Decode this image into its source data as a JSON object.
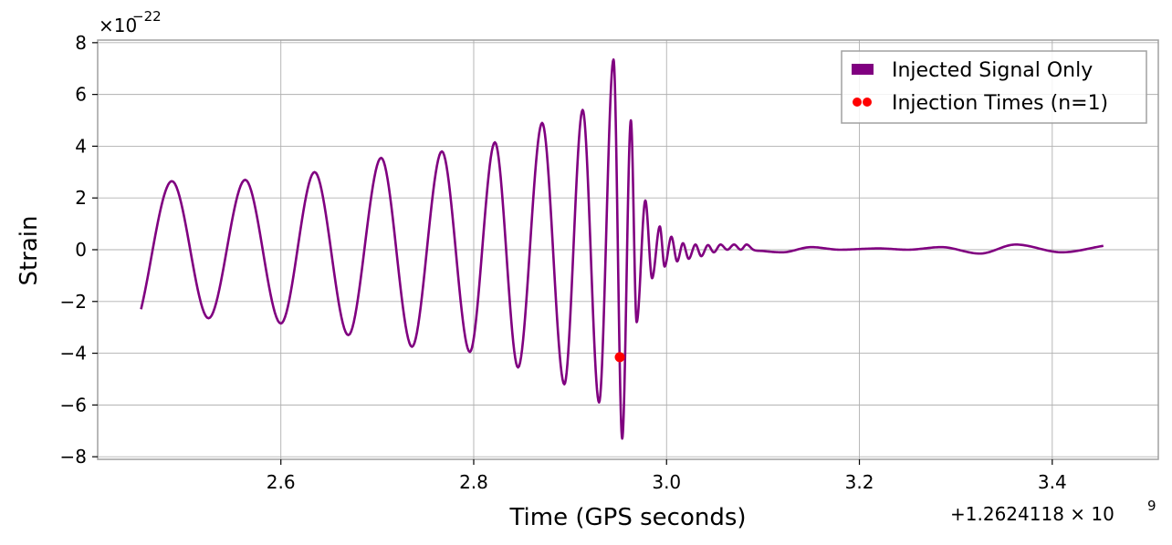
{
  "chart_data": {
    "type": "line",
    "xlabel": "Time (GPS seconds)",
    "ylabel": "Strain",
    "x_offset_text": "+1.2624118 × 10",
    "x_offset_exponent": "9",
    "y_scale_base": "×10",
    "y_scale_exponent": "−22",
    "xlim": [
      2.41,
      3.51
    ],
    "ylim": [
      -8.1,
      8.1
    ],
    "x_ticks": [
      2.6,
      2.8,
      3.0,
      3.2,
      3.4
    ],
    "x_tick_labels": [
      "2.6",
      "2.8",
      "3.0",
      "3.2",
      "3.4"
    ],
    "y_ticks": [
      -8,
      -6,
      -4,
      -2,
      0,
      2,
      4,
      6,
      8
    ],
    "y_tick_labels": [
      "−8",
      "−6",
      "−4",
      "−2",
      "0",
      "2",
      "4",
      "6",
      "8"
    ],
    "grid": true,
    "legend_position": "top-right",
    "series": [
      {
        "name": "Injected Signal Only",
        "color": "#800080",
        "x": [
          2.455,
          2.487,
          2.525,
          2.563,
          2.6,
          2.635,
          2.67,
          2.704,
          2.736,
          2.767,
          2.796,
          2.822,
          2.846,
          2.871,
          2.894,
          2.913,
          2.93,
          2.945,
          2.954,
          2.963,
          2.969,
          2.978,
          2.985,
          2.993,
          2.998,
          3.005,
          3.011,
          3.017,
          3.023,
          3.03,
          3.036,
          3.043,
          3.049,
          3.056,
          3.063,
          3.07,
          3.077,
          3.083,
          3.09,
          3.1,
          3.12,
          3.15,
          3.18,
          3.22,
          3.25,
          3.285,
          3.325,
          3.362,
          3.41,
          3.453
        ],
        "y": [
          -2.3,
          2.65,
          -2.65,
          2.7,
          -2.85,
          3.0,
          -3.3,
          3.55,
          -3.75,
          3.8,
          -3.95,
          4.15,
          -4.55,
          4.9,
          -5.2,
          5.4,
          -5.9,
          7.35,
          -7.3,
          5.0,
          -2.8,
          1.9,
          -1.1,
          0.9,
          -0.65,
          0.5,
          -0.45,
          0.25,
          -0.35,
          0.2,
          -0.25,
          0.18,
          -0.1,
          0.2,
          0.0,
          0.2,
          0.0,
          0.2,
          0.0,
          -0.05,
          -0.1,
          0.1,
          0.0,
          0.05,
          0.0,
          0.1,
          -0.15,
          0.2,
          -0.1,
          0.15
        ]
      }
    ],
    "markers": [
      {
        "name": "Injection Times (n=1)",
        "color": "#ff0000",
        "x": [
          2.9515
        ],
        "y": [
          -4.15
        ]
      }
    ]
  }
}
